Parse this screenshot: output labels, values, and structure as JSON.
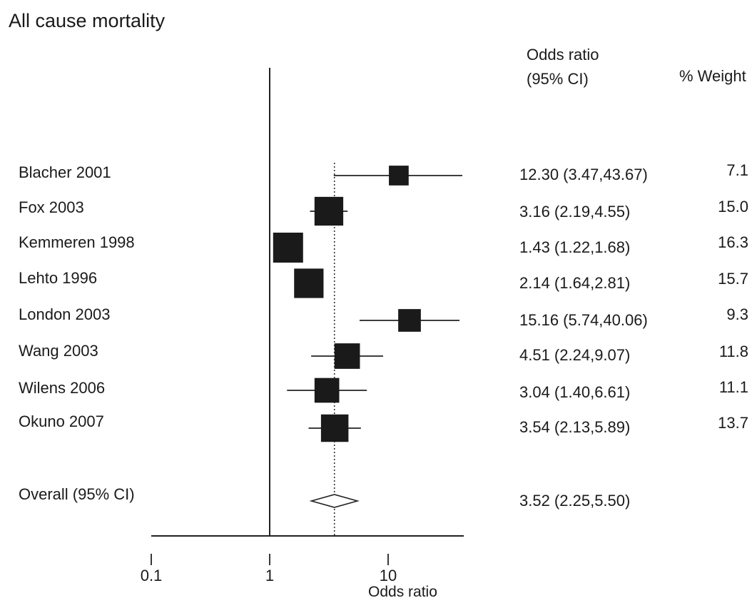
{
  "chart_data": {
    "type": "forest",
    "title": "All cause mortality",
    "column_headers": {
      "odds_ratio": "Odds ratio",
      "ci": "(95% CI)",
      "weight": "% Weight"
    },
    "xlabel": "Odds ratio",
    "x_scale": "log",
    "xlim": [
      0.1,
      40
    ],
    "x_ticks": [
      "0.1",
      "1",
      "10"
    ],
    "reference_line": 1,
    "overall_line": 3.52,
    "studies": [
      {
        "name": "Blacher 2001",
        "or": 12.3,
        "lower": 3.47,
        "upper": 43.67,
        "or_text": "12.30 (3.47,43.67)",
        "weight": "7.1"
      },
      {
        "name": "Fox 2003",
        "or": 3.16,
        "lower": 2.19,
        "upper": 4.55,
        "or_text": "3.16 (2.19,4.55)",
        "weight": "15.0"
      },
      {
        "name": "Kemmeren 1998",
        "or": 1.43,
        "lower": 1.22,
        "upper": 1.68,
        "or_text": "1.43 (1.22,1.68)",
        "weight": "16.3"
      },
      {
        "name": "Lehto 1996",
        "or": 2.14,
        "lower": 1.64,
        "upper": 2.81,
        "or_text": "2.14 (1.64,2.81)",
        "weight": "15.7"
      },
      {
        "name": "London 2003",
        "or": 15.16,
        "lower": 5.74,
        "upper": 40.06,
        "or_text": "15.16 (5.74,40.06)",
        "weight": "9.3"
      },
      {
        "name": "Wang 2003",
        "or": 4.51,
        "lower": 2.24,
        "upper": 9.07,
        "or_text": "4.51 (2.24,9.07)",
        "weight": "11.8"
      },
      {
        "name": "Wilens 2006",
        "or": 3.04,
        "lower": 1.4,
        "upper": 6.61,
        "or_text": "3.04 (1.40,6.61)",
        "weight": "11.1"
      },
      {
        "name": "Okuno 2007",
        "or": 3.54,
        "lower": 2.13,
        "upper": 5.89,
        "or_text": "3.54 (2.13,5.89)",
        "weight": "13.7"
      }
    ],
    "overall": {
      "name": "Overall (95% CI)",
      "or": 3.52,
      "lower": 2.25,
      "upper": 5.5,
      "or_text": "3.52 (2.25,5.50)"
    }
  }
}
